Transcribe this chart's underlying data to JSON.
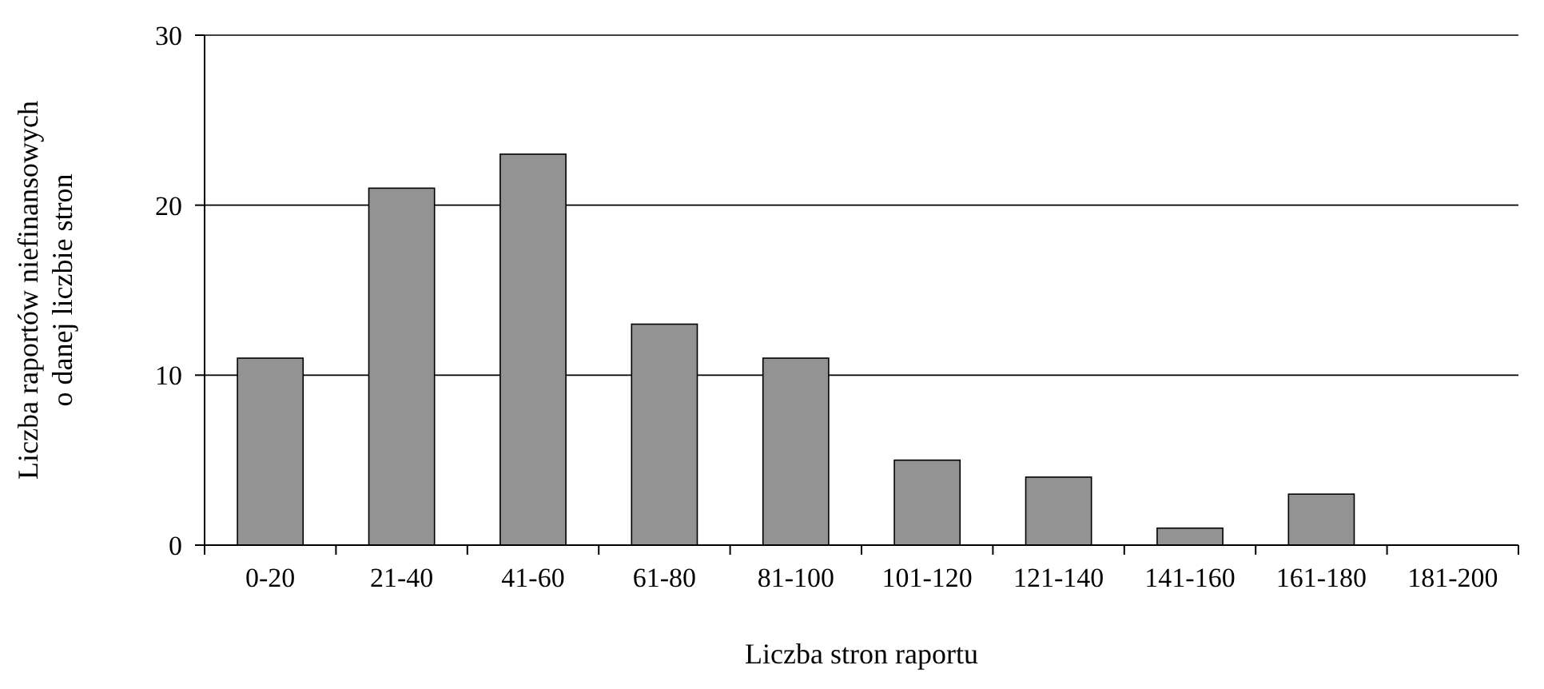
{
  "chart_data": {
    "type": "bar",
    "xlabel": "Liczba stron raportu",
    "ylabel": "Liczba raportów niefinansowych o danej liczbie stron",
    "categories": [
      "0-20",
      "21-40",
      "41-60",
      "61-80",
      "81-100",
      "101-120",
      "121-140",
      "141-160",
      "161-180",
      "181-200"
    ],
    "values": [
      11,
      21,
      23,
      13,
      11,
      5,
      4,
      1,
      3,
      0
    ],
    "color": "#939393",
    "ylim": [
      0,
      30
    ],
    "yticks": [
      0,
      10,
      20,
      30
    ],
    "grid": "y"
  }
}
